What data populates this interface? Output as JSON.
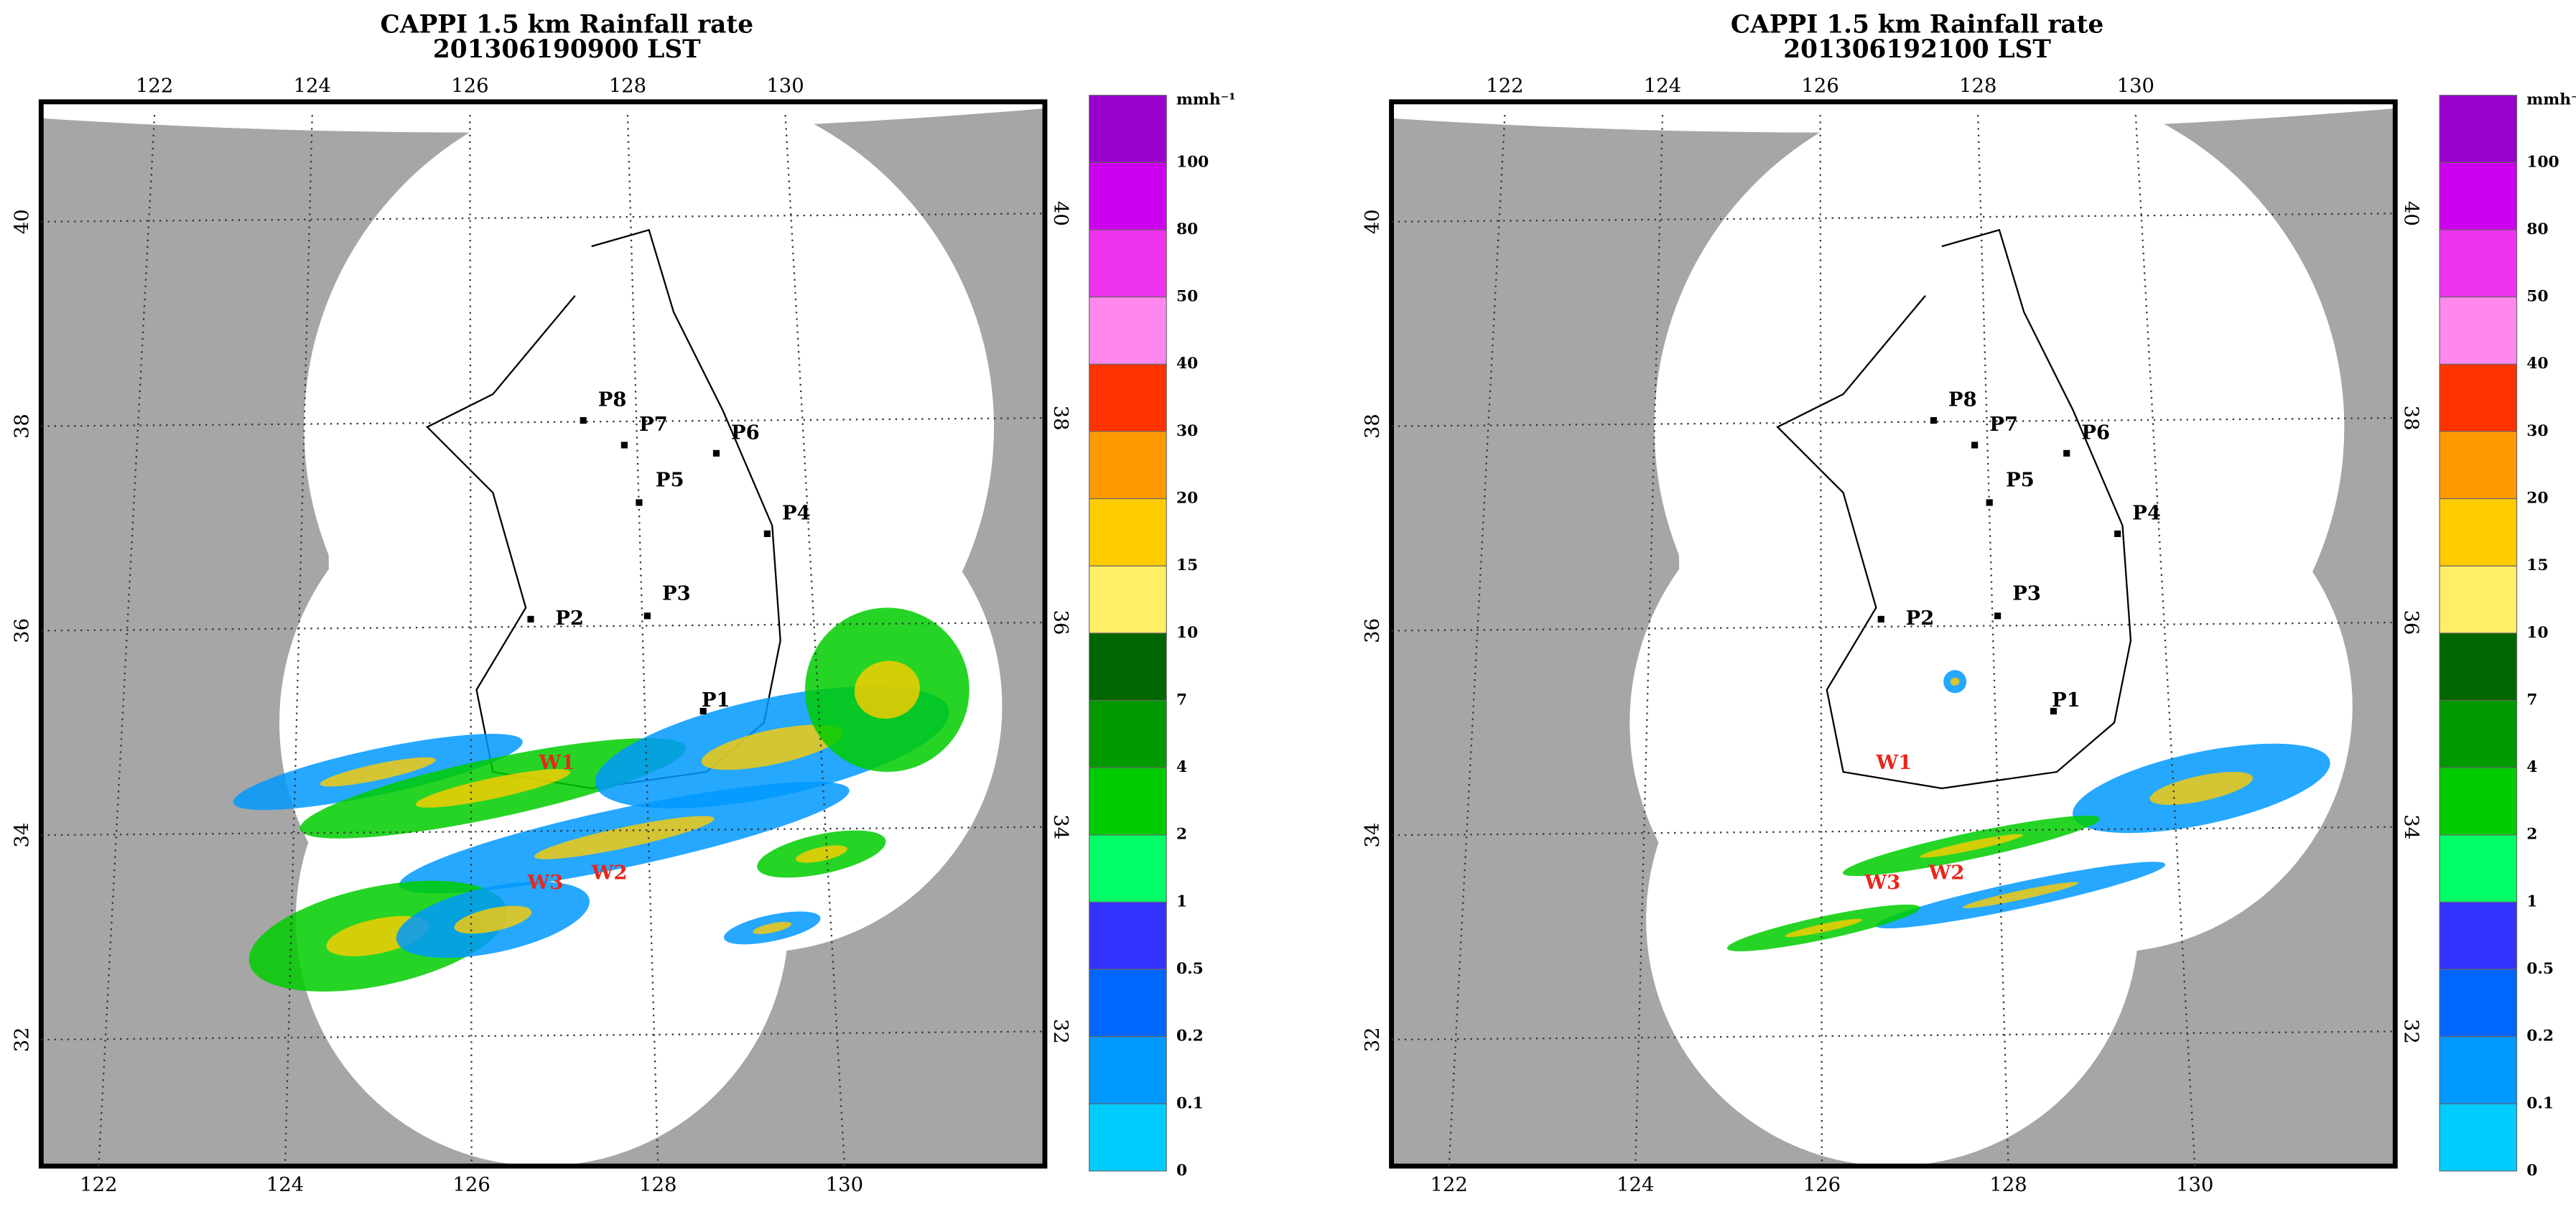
{
  "panels": [
    {
      "title": "CAPPI 1.5 km Rainfall rate",
      "time": "201306190900 LST",
      "lon_ticks_top": [
        122,
        124,
        126,
        128,
        130
      ],
      "lon_ticks_bottom": [
        122,
        124,
        126,
        128,
        130
      ],
      "lat_ticks_left": [
        40,
        38,
        36,
        34,
        32
      ],
      "lat_ticks_right": [
        40,
        38,
        36,
        34,
        32
      ],
      "stations": [
        "P1",
        "P2",
        "P3",
        "P4",
        "P5",
        "P6",
        "P7",
        "P8"
      ],
      "rain_markers": [
        "W1",
        "W2",
        "W3"
      ]
    },
    {
      "title": "CAPPI 1.5 km Rainfall rate",
      "time": "201306192100 LST",
      "lon_ticks_top": [
        122,
        124,
        126,
        128,
        130
      ],
      "lon_ticks_bottom": [
        122,
        124,
        126,
        128,
        130
      ],
      "lat_ticks_left": [
        40,
        38,
        36,
        34,
        32
      ],
      "lat_ticks_right": [
        40,
        38,
        36,
        34,
        32
      ],
      "stations": [
        "P1",
        "P2",
        "P3",
        "P4",
        "P5",
        "P6",
        "P7",
        "P8"
      ],
      "rain_markers": [
        "W1",
        "W2",
        "W3"
      ]
    }
  ],
  "colorbar": {
    "unit": "mmh⁻¹",
    "levels": [
      0,
      0.1,
      0.2,
      0.5,
      1,
      2,
      4,
      7,
      10,
      15,
      20,
      30,
      40,
      50,
      80,
      100
    ],
    "colors": [
      "#00ccff",
      "#0099ff",
      "#0066ff",
      "#3333ff",
      "#00ff66",
      "#00cc00",
      "#009900",
      "#006600",
      "#ffee66",
      "#ffcc00",
      "#ff9900",
      "#ff3300",
      "#ff88ee",
      "#ee33ee",
      "#cc00ee",
      "#9900cc"
    ]
  }
}
